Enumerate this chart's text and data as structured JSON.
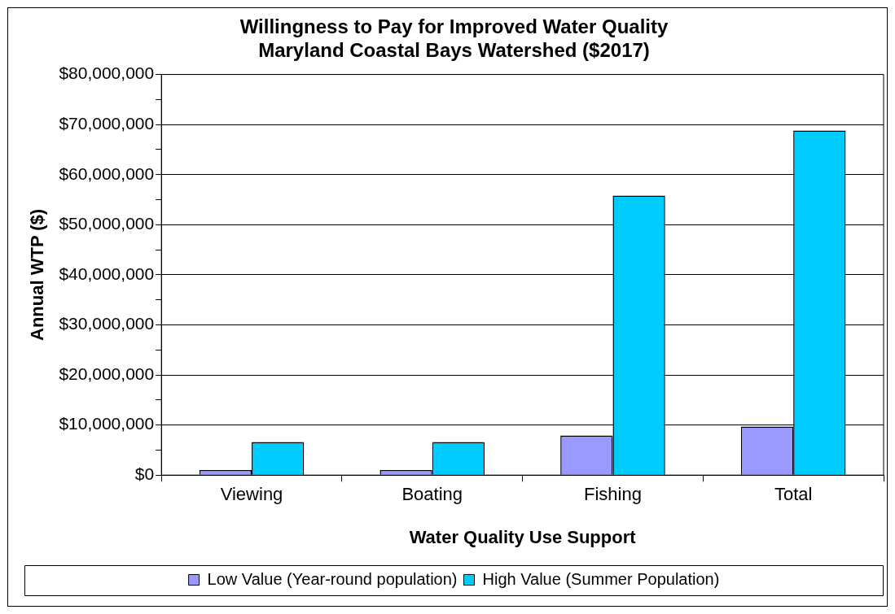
{
  "chart_data": {
    "type": "bar",
    "title": "Willingness to Pay for Improved Water Quality\nMaryland Coastal Bays Watershed ($2017)",
    "xlabel": "Water Quality Use Support",
    "ylabel": "Annual WTP ($)",
    "categories": [
      "Viewing",
      "Boating",
      "Fishing",
      "Total"
    ],
    "series": [
      {
        "name": "Low Value (Year-round population)",
        "color": "#9999ff",
        "values": [
          1000000,
          1000000,
          7900000,
          9700000
        ]
      },
      {
        "name": "High Value (Summer Population)",
        "color": "#00ccff",
        "values": [
          6600000,
          6600000,
          55800000,
          68800000
        ]
      }
    ],
    "ylim": [
      0,
      80000000
    ],
    "yticks": [
      {
        "value": 0,
        "label": "$0"
      },
      {
        "value": 5000000,
        "label": null
      },
      {
        "value": 10000000,
        "label": "$10,000,000"
      },
      {
        "value": 15000000,
        "label": null
      },
      {
        "value": 20000000,
        "label": "$20,000,000"
      },
      {
        "value": 25000000,
        "label": null
      },
      {
        "value": 30000000,
        "label": "$30,000,000"
      },
      {
        "value": 35000000,
        "label": null
      },
      {
        "value": 40000000,
        "label": "$40,000,000"
      },
      {
        "value": 45000000,
        "label": null
      },
      {
        "value": 50000000,
        "label": "$50,000,000"
      },
      {
        "value": 55000000,
        "label": null
      },
      {
        "value": 60000000,
        "label": "$60,000,000"
      },
      {
        "value": 65000000,
        "label": null
      },
      {
        "value": 70000000,
        "label": "$70,000,000"
      },
      {
        "value": 75000000,
        "label": null
      },
      {
        "value": 80000000,
        "label": "$80,000,000"
      }
    ],
    "grid": "y",
    "legend": "bottom"
  }
}
